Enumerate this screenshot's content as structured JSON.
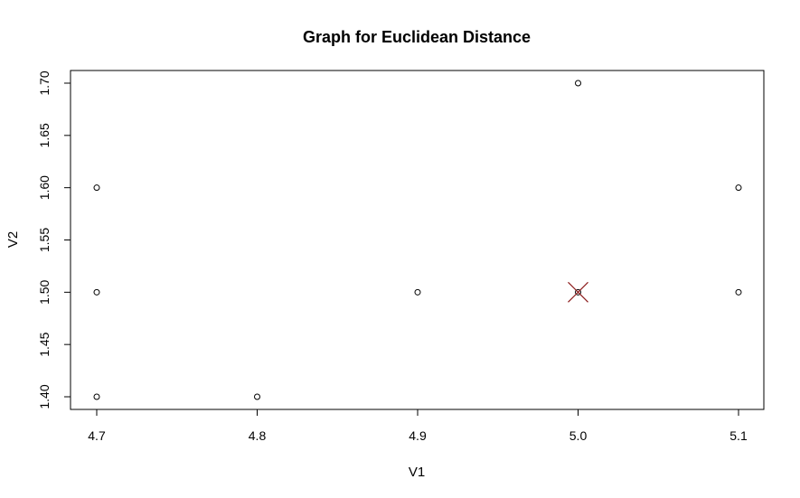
{
  "chart_data": {
    "type": "scatter",
    "title": "Graph for Euclidean Distance",
    "xlabel": "V1",
    "ylabel": "V2",
    "xlim": [
      4.7,
      5.1
    ],
    "ylim": [
      1.4,
      1.7
    ],
    "x_ticks": [
      "4.7",
      "4.8",
      "4.9",
      "5.0",
      "5.1"
    ],
    "y_ticks": [
      "1.40",
      "1.45",
      "1.50",
      "1.55",
      "1.60",
      "1.65",
      "1.70"
    ],
    "grid": false,
    "series": [
      {
        "marker": "open-circle",
        "color": "#000000",
        "points": [
          {
            "x": 4.7,
            "y": 1.6
          },
          {
            "x": 4.7,
            "y": 1.5
          },
          {
            "x": 4.7,
            "y": 1.4
          },
          {
            "x": 4.8,
            "y": 1.4
          },
          {
            "x": 4.9,
            "y": 1.5
          },
          {
            "x": 5.0,
            "y": 1.7
          },
          {
            "x": 5.0,
            "y": 1.5
          },
          {
            "x": 5.1,
            "y": 1.6
          },
          {
            "x": 5.1,
            "y": 1.5
          }
        ]
      },
      {
        "marker": "cross",
        "color": "#8b1a1a",
        "points": [
          {
            "x": 5.0,
            "y": 1.5
          }
        ]
      }
    ]
  }
}
